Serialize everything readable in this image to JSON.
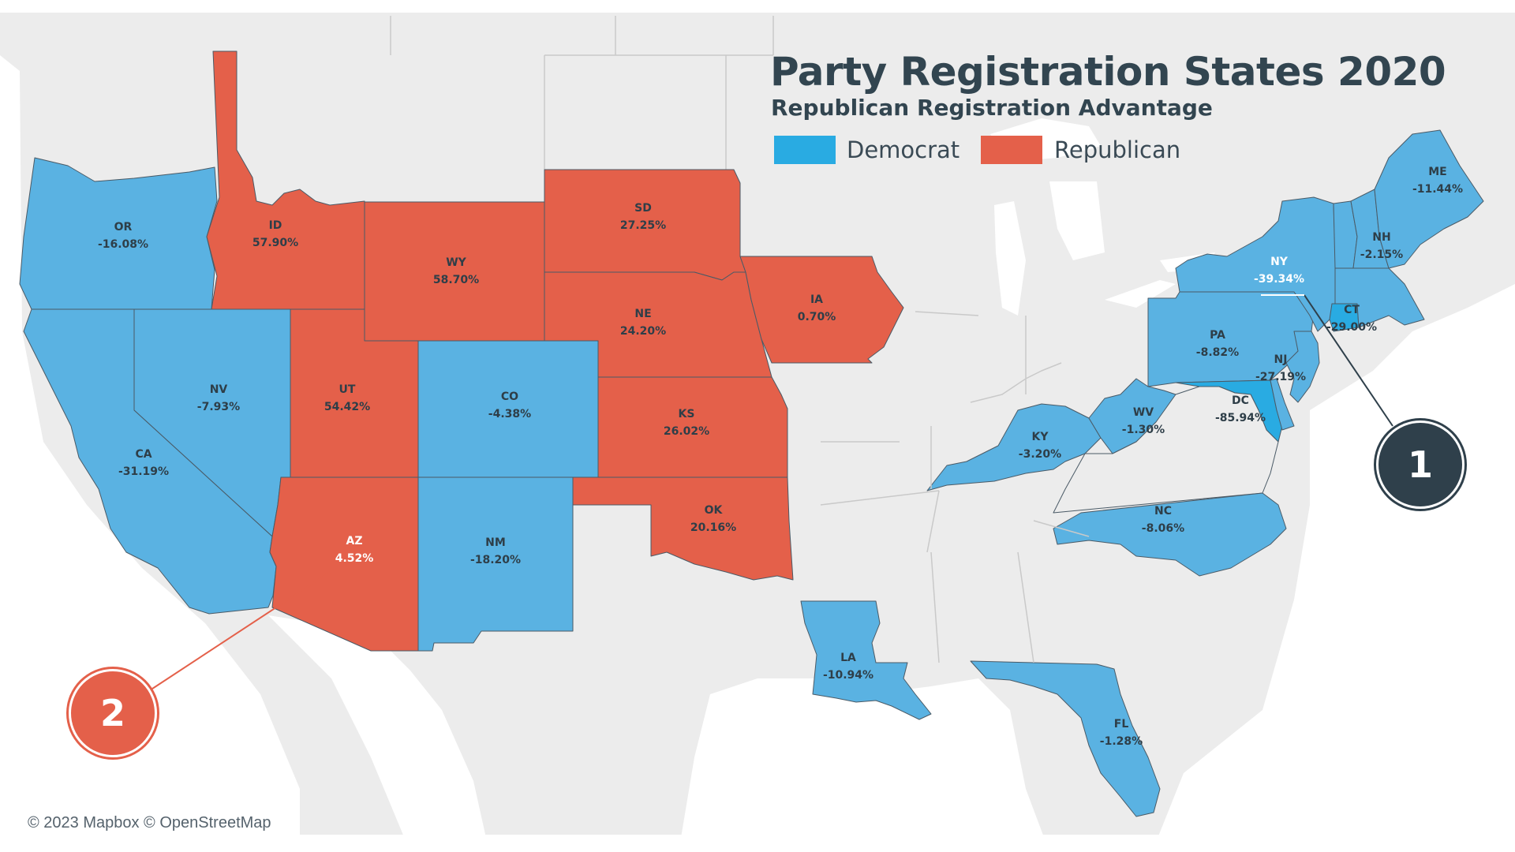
{
  "title": "Party Registration States 2020",
  "subtitle": "Republican Registration Advantage",
  "legend": [
    {
      "label": "Democrat",
      "color": "#29abe2"
    },
    {
      "label": "Republican",
      "color": "#e4604a"
    }
  ],
  "colors": {
    "democrat_fill": "#5ab2e2",
    "republican_fill": "#e4604a",
    "background_land": "#ececec",
    "water": "#ffffff",
    "callout_1": "#2f404b",
    "callout_2": "#e4604a"
  },
  "states": [
    {
      "abbr": "OR",
      "value": "-16.08%",
      "party": "Democrat"
    },
    {
      "abbr": "ID",
      "value": "57.90%",
      "party": "Republican"
    },
    {
      "abbr": "WY",
      "value": "58.70%",
      "party": "Republican"
    },
    {
      "abbr": "SD",
      "value": "27.25%",
      "party": "Republican"
    },
    {
      "abbr": "IA",
      "value": "0.70%",
      "party": "Republican"
    },
    {
      "abbr": "NE",
      "value": "24.20%",
      "party": "Republican"
    },
    {
      "abbr": "NV",
      "value": "-7.93%",
      "party": "Democrat"
    },
    {
      "abbr": "UT",
      "value": "54.42%",
      "party": "Republican"
    },
    {
      "abbr": "CO",
      "value": "-4.38%",
      "party": "Democrat"
    },
    {
      "abbr": "KS",
      "value": "26.02%",
      "party": "Republican"
    },
    {
      "abbr": "CA",
      "value": "-31.19%",
      "party": "Democrat"
    },
    {
      "abbr": "AZ",
      "value": "4.52%",
      "party": "Republican"
    },
    {
      "abbr": "NM",
      "value": "-18.20%",
      "party": "Democrat"
    },
    {
      "abbr": "OK",
      "value": "20.16%",
      "party": "Republican"
    },
    {
      "abbr": "LA",
      "value": "-10.94%",
      "party": "Democrat"
    },
    {
      "abbr": "KY",
      "value": "-3.20%",
      "party": "Democrat"
    },
    {
      "abbr": "WV",
      "value": "-1.30%",
      "party": "Democrat"
    },
    {
      "abbr": "PA",
      "value": "-8.82%",
      "party": "Democrat"
    },
    {
      "abbr": "DC",
      "value": "-85.94%",
      "party": "Democrat"
    },
    {
      "abbr": "NJ",
      "value": "-27.19%",
      "party": "Democrat"
    },
    {
      "abbr": "NY",
      "value": "-39.34%",
      "party": "Democrat"
    },
    {
      "abbr": "CT",
      "value": "-29.00%",
      "party": "Democrat"
    },
    {
      "abbr": "NH",
      "value": "-2.15%",
      "party": "Democrat"
    },
    {
      "abbr": "ME",
      "value": "-11.44%",
      "party": "Democrat"
    },
    {
      "abbr": "NC",
      "value": "-8.06%",
      "party": "Democrat"
    },
    {
      "abbr": "FL",
      "value": "-1.28%",
      "party": "Democrat"
    }
  ],
  "callouts": [
    {
      "number": "1",
      "target": "NY"
    },
    {
      "number": "2",
      "target": "AZ"
    }
  ],
  "attribution": "© 2023 Mapbox © OpenStreetMap"
}
